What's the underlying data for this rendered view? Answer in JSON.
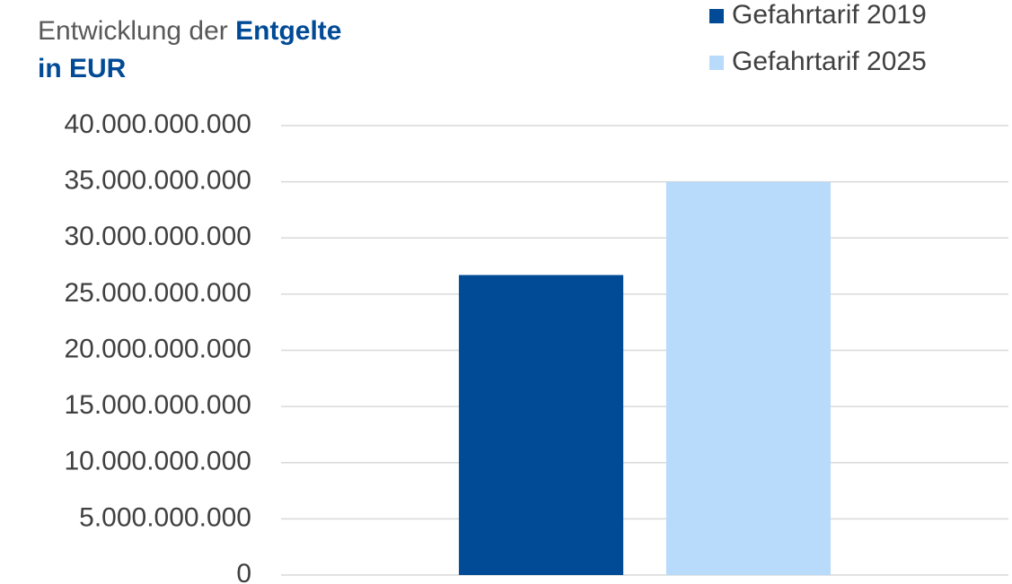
{
  "chart_data": {
    "type": "bar",
    "title": [
      "Entwicklung der",
      "Entgelte",
      "in EUR"
    ],
    "categories": [
      null
    ],
    "series": [
      {
        "name": "Gefahrtarif 2019",
        "color": "#004a96",
        "values": [
          26700000000
        ]
      },
      {
        "name": "Gefahrtarif 2025",
        "color": "#b8dafb",
        "values": [
          35000000000
        ]
      }
    ],
    "ylim": [
      0,
      40000000000
    ],
    "yticks": [
      0,
      {
        "value": 5000000000,
        "label": "5.000.000.000"
      },
      {
        "value": 10000000000,
        "label": "10.000.000.000"
      },
      {
        "value": 15000000000,
        "label": "15.000.000.000"
      },
      {
        "value": 20000000000,
        "label": "20.000.000.000"
      },
      {
        "value": 25000000000,
        "label": "25.000.000.000"
      },
      {
        "value": 30000000000,
        "label": "30.000.000.000"
      },
      {
        "value": 35000000000,
        "label": "35.000.000.000"
      },
      {
        "value": 40000000000,
        "label": "40.000.000.000"
      }
    ],
    "grid": true,
    "legend": "top-right"
  }
}
